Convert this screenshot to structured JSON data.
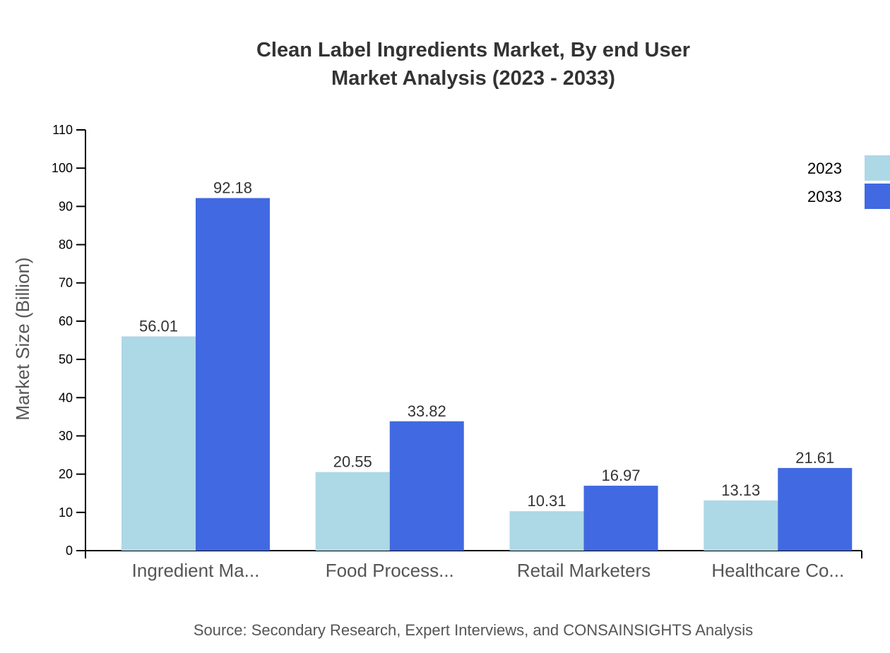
{
  "chart_data": {
    "type": "bar",
    "title": [
      "Clean Label Ingredients Market, By end User",
      "Market Analysis (2023 - 2033)"
    ],
    "xlabel": "",
    "ylabel": "Market Size (Billion)",
    "ylim": [
      0,
      110
    ],
    "yticks": [
      0,
      10,
      20,
      30,
      40,
      50,
      60,
      70,
      80,
      90,
      100,
      110
    ],
    "categories": [
      "Ingredient Ma...",
      "Food Process...",
      "Retail Marketers",
      "Healthcare Co..."
    ],
    "series": [
      {
        "name": "2023",
        "color": "#add8e6",
        "values": [
          56.01,
          20.55,
          10.31,
          13.13
        ]
      },
      {
        "name": "2033",
        "color": "#4169e1",
        "values": [
          92.18,
          33.82,
          16.97,
          21.61
        ]
      }
    ],
    "legend_position": "top-right",
    "grid": false,
    "source": "Source: Secondary Research, Expert Interviews, and CONSAINSIGHTS Analysis"
  }
}
